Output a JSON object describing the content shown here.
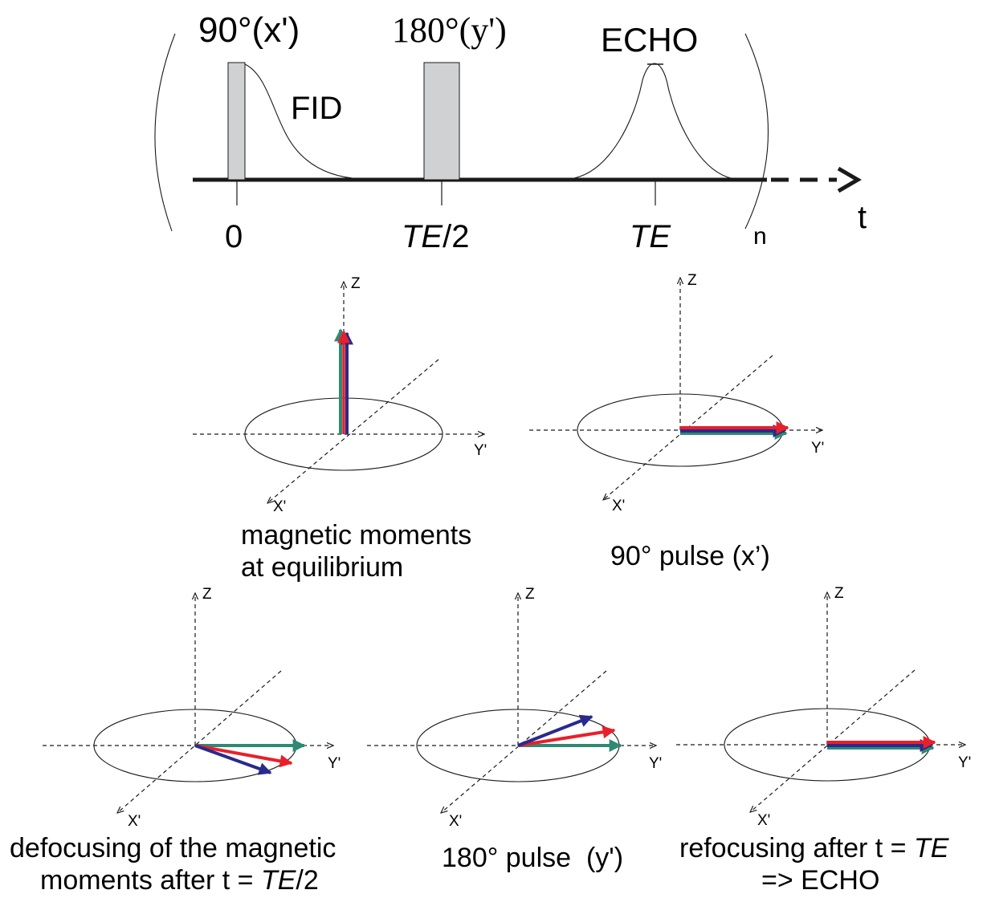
{
  "sequence": {
    "pulse90_label": "90°(x')",
    "pulse180_label": "180°(y')",
    "fid_label": "FID",
    "echo_label": "ECHO",
    "tick_0": "0",
    "tick_te2_italic": "TE",
    "tick_te2_rest": "/2",
    "tick_te": "TE",
    "repeat_label": "n",
    "time_label": "t"
  },
  "axes": {
    "z": "Z",
    "y": "Y'",
    "x": "X'"
  },
  "panels": [
    {
      "id": "equilibrium",
      "caption_line1": "magnetic moments",
      "caption_line2": "at equilibrium"
    },
    {
      "id": "pulse90",
      "caption_line1": "90° pulse (x’)"
    },
    {
      "id": "defocus",
      "caption_line1": "defocusing of the magnetic",
      "caption_line2_pre": "moments after t = ",
      "caption_line2_italic": "TE",
      "caption_line2_post": "/2"
    },
    {
      "id": "pulse180",
      "caption_line1": "180° pulse  (y')"
    },
    {
      "id": "refocus",
      "caption_line1_pre": "refocusing after t = ",
      "caption_line1_italic": "TE",
      "caption_line2": "=> ECHO"
    }
  ],
  "colors": {
    "red": "#e8202a",
    "blue": "#2a2a8c",
    "green": "#2e8a74",
    "pulse_fill": "#d0d1d3"
  }
}
